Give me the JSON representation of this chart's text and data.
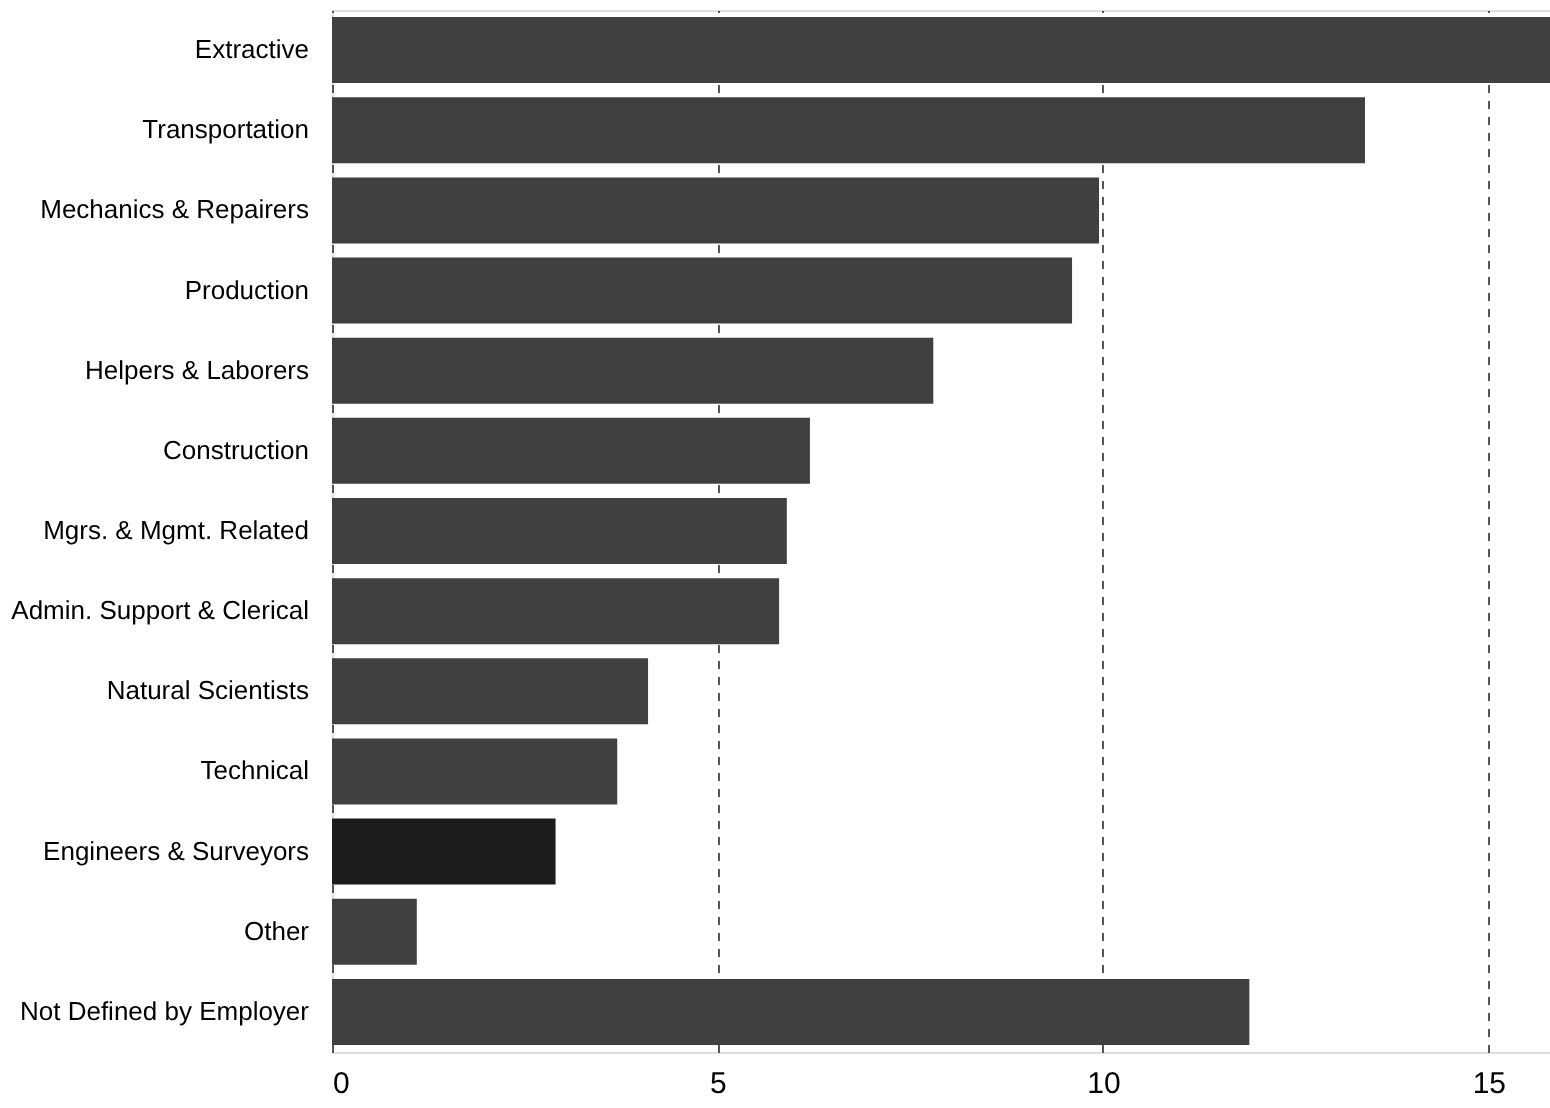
{
  "chart_data": {
    "type": "bar",
    "orientation": "horizontal",
    "categories": [
      "Extractive",
      "Transportation",
      "Mechanics & Repairers",
      "Production",
      "Helpers & Laborers",
      "Construction",
      "Mgrs. & Mgmt. Related",
      "Admin. Support & Clerical",
      "Natural Scientists",
      "Technical",
      "Engineers & Surveyors",
      "Other",
      "Not Defined by Employer"
    ],
    "values": [
      15.8,
      13.4,
      9.95,
      9.6,
      7.8,
      6.2,
      5.9,
      5.8,
      4.1,
      3.7,
      2.9,
      1.1,
      11.9
    ],
    "colors": [
      "#404040",
      "#404040",
      "#404040",
      "#404040",
      "#404040",
      "#404040",
      "#404040",
      "#404040",
      "#404040",
      "#404040",
      "#1c1c1c",
      "#404040",
      "#404040"
    ],
    "xlim": [
      0,
      15.8
    ],
    "xticks": [
      0,
      5,
      10,
      15
    ],
    "grid": "x"
  }
}
